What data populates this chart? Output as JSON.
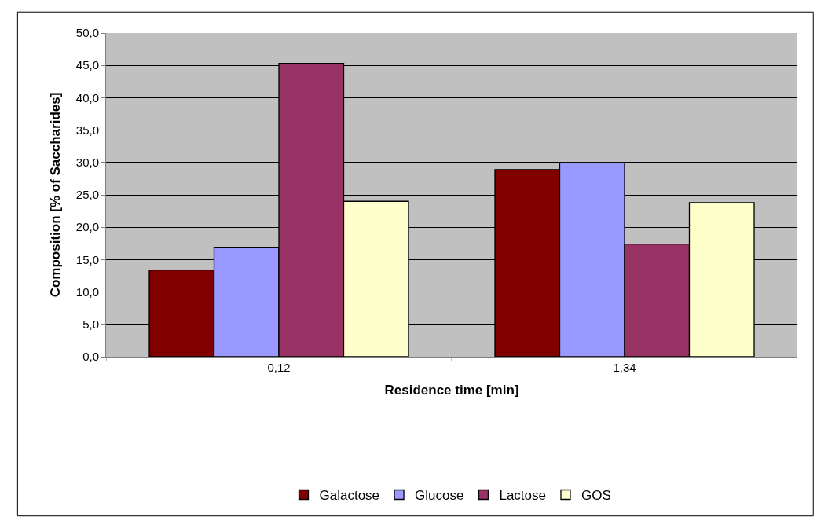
{
  "chart_data": {
    "type": "bar",
    "xlabel": "Residence time [min]",
    "ylabel": "Composition [% of Saccharides]",
    "categories": [
      "0,12",
      "1,34"
    ],
    "series": [
      {
        "name": "Galactose",
        "color": "#800000",
        "values": [
          13.4,
          28.9
        ]
      },
      {
        "name": "Glucose",
        "color": "#9999ff",
        "values": [
          16.9,
          30.0
        ]
      },
      {
        "name": "Lactose",
        "color": "#993366",
        "values": [
          45.3,
          17.4
        ]
      },
      {
        "name": "GOS",
        "color": "#ffffcc",
        "values": [
          24.0,
          23.8
        ]
      }
    ],
    "ylim": [
      0,
      50
    ],
    "yticks": [
      {
        "value": 0,
        "label": "0,0"
      },
      {
        "value": 5,
        "label": "5,0"
      },
      {
        "value": 10,
        "label": "10,0"
      },
      {
        "value": 15,
        "label": "15,0"
      },
      {
        "value": 20,
        "label": "20,0"
      },
      {
        "value": 25,
        "label": "25,0"
      },
      {
        "value": 30,
        "label": "30,0"
      },
      {
        "value": 35,
        "label": "35,0"
      },
      {
        "value": 40,
        "label": "40,0"
      },
      {
        "value": 45,
        "label": "45,0"
      },
      {
        "value": 50,
        "label": "50,0"
      }
    ],
    "grid": "y",
    "legend": "bottom"
  }
}
